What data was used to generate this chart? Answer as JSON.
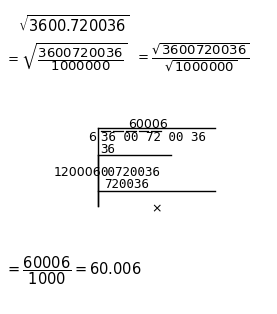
{
  "bg_color": "#ffffff",
  "fig_width": 2.77,
  "fig_height": 3.14,
  "dpi": 100,
  "line1": "$\\sqrt{3600.720036}$",
  "line2a": "$= \\sqrt{\\dfrac{3600720036}{1000000}}$",
  "line2b": "$= \\dfrac{\\sqrt{3600720036}}{\\sqrt{1000000}}$",
  "quotient": "60006",
  "divisor": "6",
  "dividend": "36 00 72 00 36",
  "sub1": "36",
  "divisor2": "120006",
  "remainder1": "00720036",
  "sub2": "720036",
  "remainder2": "×",
  "final": "$= \\dfrac{60006}{1000} = 60.006$"
}
